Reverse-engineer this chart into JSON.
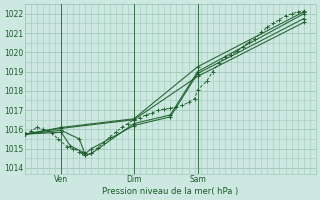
{
  "bg_color": "#cce8e0",
  "grid_color": "#a0c8bc",
  "line_color": "#1a5c28",
  "text_color": "#1a5c28",
  "ylabel_ticks": [
    1014,
    1015,
    1016,
    1017,
    1018,
    1019,
    1020,
    1021,
    1022
  ],
  "xlabel": "Pression niveau de la mer( hPa )",
  "xtick_labels": [
    "Ven",
    "Dim",
    "Sam"
  ],
  "xtick_positions": [
    12,
    36,
    57
  ],
  "vline_positions": [
    12,
    36,
    57
  ],
  "ylim": [
    1013.7,
    1022.5
  ],
  "xlim": [
    0,
    96
  ],
  "series": [
    [
      0,
      1015.75,
      2,
      1015.9,
      4,
      1016.1,
      6,
      1016.0,
      9,
      1015.8,
      11,
      1015.5,
      14,
      1015.1,
      16,
      1015.0,
      18,
      1014.85,
      19,
      1014.75,
      20,
      1014.65,
      22,
      1014.75,
      24,
      1015.05,
      26,
      1015.3,
      28,
      1015.6,
      30,
      1015.85,
      32,
      1016.1,
      34,
      1016.3,
      36,
      1016.5,
      38,
      1016.6,
      40,
      1016.75,
      42,
      1016.85,
      44,
      1017.0,
      46,
      1017.05,
      48,
      1017.1,
      50,
      1017.15,
      52,
      1017.25,
      54,
      1017.4,
      56,
      1017.6,
      57,
      1018.05,
      60,
      1018.5,
      62,
      1019.0,
      64,
      1019.45,
      66,
      1019.75,
      68,
      1019.85,
      70,
      1020.05,
      72,
      1020.3,
      74,
      1020.55,
      76,
      1020.7,
      78,
      1021.05,
      80,
      1021.3,
      82,
      1021.5,
      84,
      1021.7,
      86,
      1021.9,
      88,
      1022.0,
      90,
      1022.1,
      92,
      1022.15
    ],
    [
      0,
      1015.75,
      12,
      1016.1,
      36,
      1016.55,
      57,
      1019.25,
      92,
      1022.1
    ],
    [
      0,
      1015.75,
      12,
      1016.05,
      36,
      1016.5,
      57,
      1018.75,
      92,
      1021.55
    ],
    [
      0,
      1015.75,
      12,
      1015.95,
      18,
      1015.5,
      20,
      1014.65,
      22,
      1014.75,
      36,
      1016.3,
      48,
      1016.75,
      57,
      1019.0,
      92,
      1022.0
    ],
    [
      0,
      1015.75,
      12,
      1015.85,
      15,
      1015.15,
      20,
      1014.75,
      22,
      1015.0,
      36,
      1016.2,
      48,
      1016.65,
      57,
      1018.9,
      92,
      1021.75
    ]
  ]
}
